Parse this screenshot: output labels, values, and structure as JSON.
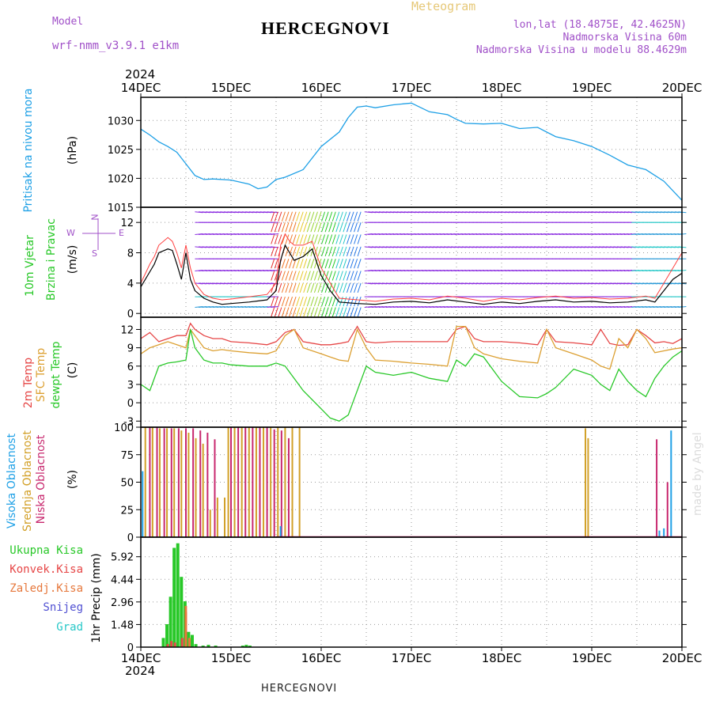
{
  "header": {
    "model_label": "Model",
    "model_name": "wrf-nmm_v3.9.1 e1km",
    "title": "HERCEGNOVI",
    "meteogram": "Meteogram",
    "lonlat": "lon,lat (18.4875E, 42.4625N)",
    "altitude": "Nadmorska Visina 60m",
    "model_altitude": "Nadmorska Visina u modelu 88.4629m"
  },
  "footer": {
    "station": "HERCEGNOVI",
    "credit": "made by Angel"
  },
  "axis": {
    "year_top": "2024",
    "year_bottom": "2024",
    "day_labels": [
      "14DEC",
      "15DEC",
      "16DEC",
      "17DEC",
      "18DEC",
      "19DEC",
      "20DEC"
    ]
  },
  "panel_labels": {
    "pressure": "Pritisak na nivou mora",
    "pressure_unit": "(hPa)",
    "wind_line1": "10m Vjetar",
    "wind_line2": "Brzina i Pravac",
    "wind_unit": "(m/s)",
    "compass_n": "N",
    "compass_e": "E",
    "compass_w": "W",
    "compass_s": "S",
    "temp_2m": "2m Temp",
    "temp_sfc": "SFC Temp",
    "temp_dew": "dewpt Temp",
    "temp_unit": "(C)",
    "cloud_high": "Visoka Oblacnost",
    "cloud_mid": "Srednja Oblacnost",
    "cloud_low": "Niska Oblacnost",
    "cloud_unit": "(%)",
    "precip_total": "Ukupna Kisa",
    "precip_conv": "Konvek.Kisa",
    "precip_frz": "Zaledj.Kisa",
    "precip_snow": "Snijeg",
    "precip_hail": "Grad",
    "precip_unit": "1hr Precip (mm)"
  },
  "colors": {
    "pressure": "#1ea0e6",
    "temp2m": "#e64646",
    "sfc": "#dca032",
    "dew": "#28c828",
    "wind_speed": "#000000",
    "gust": "#ff4040",
    "cloud_high": "#1ea0e6",
    "cloud_mid": "#d2a028",
    "cloud_low": "#c8286e",
    "precip_total": "#28c828",
    "precip_conv": "#e64646",
    "precip_frz": "#e6783c",
    "precip_snow": "#5050d2",
    "precip_hail": "#28c8c8",
    "header_purple": "#a050c8",
    "header_gold": "#e6c878"
  },
  "chart_data": [
    {
      "type": "line",
      "panel": "pressure",
      "ylabel": "(hPa)",
      "ylim": [
        1015,
        1034
      ],
      "yticks": [
        1015,
        1020,
        1025,
        1030
      ],
      "x_days": [
        0,
        0.1,
        0.2,
        0.3,
        0.4,
        0.5,
        0.6,
        0.7,
        0.8,
        1.0,
        1.2,
        1.3,
        1.4,
        1.5,
        1.6,
        1.8,
        2.0,
        2.2,
        2.3,
        2.4,
        2.5,
        2.6,
        2.8,
        3.0,
        3.2,
        3.4,
        3.5,
        3.6,
        3.8,
        4.0,
        4.2,
        4.4,
        4.6,
        4.8,
        5.0,
        5.2,
        5.4,
        5.6,
        5.8,
        6.0
      ],
      "series": [
        {
          "values": [
            1028.5,
            1027.5,
            1026.3,
            1025.5,
            1024.5,
            1022.5,
            1020.5,
            1019.8,
            1019.9,
            1019.7,
            1019.0,
            1018.2,
            1018.5,
            1019.8,
            1020.2,
            1021.5,
            1025.5,
            1028.0,
            1030.5,
            1032.3,
            1032.5,
            1032.2,
            1032.7,
            1033.0,
            1031.5,
            1031.0,
            1030.2,
            1029.5,
            1029.4,
            1029.5,
            1028.6,
            1028.8,
            1027.2,
            1026.5,
            1025.5,
            1024.0,
            1022.3,
            1021.5,
            1019.5,
            1016.2
          ]
        }
      ]
    },
    {
      "type": "line",
      "panel": "wind",
      "ylabel": "(m/s)",
      "ylim": [
        -0.5,
        14
      ],
      "yticks": [
        0,
        4,
        8,
        12
      ],
      "x_days": [
        0,
        0.1,
        0.15,
        0.2,
        0.3,
        0.35,
        0.4,
        0.45,
        0.5,
        0.55,
        0.6,
        0.7,
        0.8,
        0.9,
        1.0,
        1.2,
        1.4,
        1.5,
        1.55,
        1.6,
        1.65,
        1.7,
        1.8,
        1.9,
        2.0,
        2.1,
        2.2,
        2.4,
        2.6,
        2.8,
        3.0,
        3.2,
        3.4,
        3.6,
        3.8,
        4.0,
        4.2,
        4.4,
        4.6,
        4.8,
        5.0,
        5.2,
        5.4,
        5.6,
        5.7,
        5.8,
        5.9,
        6.0
      ],
      "series": [
        {
          "name": "",
          "values": [
            3.5,
            5.5,
            6.5,
            8.0,
            8.5,
            8.3,
            6.5,
            4.5,
            8.0,
            4.5,
            3.0,
            2.0,
            1.5,
            1.2,
            1.3,
            1.5,
            1.8,
            3.0,
            7.0,
            9.0,
            8.0,
            7.0,
            7.5,
            8.5,
            5.0,
            3.0,
            1.5,
            1.3,
            1.2,
            1.5,
            1.6,
            1.4,
            1.8,
            1.5,
            1.2,
            1.5,
            1.3,
            1.6,
            1.8,
            1.5,
            1.6,
            1.4,
            1.5,
            1.8,
            1.5,
            3.0,
            4.5,
            5.3
          ]
        },
        {
          "name": "",
          "values": [
            4.0,
            6.5,
            7.5,
            9.0,
            10.0,
            9.5,
            8.0,
            6.0,
            9.0,
            6.0,
            4.0,
            2.5,
            2.0,
            1.8,
            1.9,
            2.2,
            2.5,
            4.0,
            9.0,
            10.5,
            9.5,
            9.0,
            9.0,
            9.5,
            6.0,
            4.0,
            2.0,
            1.8,
            1.6,
            1.9,
            2.0,
            1.8,
            2.3,
            2.0,
            1.6,
            2.0,
            1.8,
            2.1,
            2.3,
            2.0,
            2.1,
            1.9,
            2.0,
            2.3,
            2.0,
            4.0,
            6.0,
            8.0
          ]
        }
      ]
    },
    {
      "type": "line",
      "panel": "temperature",
      "ylabel": "(C)",
      "ylim": [
        -4,
        14
      ],
      "yticks": [
        -3,
        0,
        3,
        6,
        9,
        12
      ],
      "x_days": [
        0,
        0.1,
        0.2,
        0.3,
        0.4,
        0.5,
        0.55,
        0.6,
        0.7,
        0.8,
        0.9,
        1.0,
        1.2,
        1.4,
        1.5,
        1.6,
        1.7,
        1.8,
        2.0,
        2.1,
        2.2,
        2.3,
        2.4,
        2.5,
        2.6,
        2.8,
        3.0,
        3.2,
        3.4,
        3.5,
        3.6,
        3.7,
        3.8,
        4.0,
        4.2,
        4.4,
        4.5,
        4.6,
        4.8,
        5.0,
        5.1,
        5.2,
        5.3,
        5.4,
        5.5,
        5.6,
        5.7,
        5.8,
        5.9,
        6.0
      ],
      "series": [
        {
          "name": "2m Temp",
          "values": [
            10.5,
            11.5,
            10.0,
            10.5,
            11.0,
            11.0,
            13.0,
            12.0,
            11.0,
            10.5,
            10.5,
            10.0,
            9.8,
            9.5,
            10.0,
            11.5,
            12.0,
            10.0,
            9.5,
            9.5,
            9.7,
            10.0,
            12.5,
            10.0,
            9.8,
            10.0,
            10.0,
            10.0,
            10.0,
            12.0,
            12.5,
            10.5,
            10.0,
            10.0,
            9.8,
            9.5,
            12.0,
            10.0,
            9.8,
            9.5,
            12.0,
            9.7,
            9.4,
            9.5,
            12.0,
            11.0,
            9.8,
            10.0,
            9.7,
            10.5
          ]
        },
        {
          "name": "SFC Temp",
          "values": [
            8.0,
            9.0,
            9.5,
            10.0,
            9.5,
            9.0,
            12.0,
            11.0,
            9.0,
            8.5,
            8.7,
            8.5,
            8.2,
            8.0,
            8.5,
            11.0,
            12.0,
            9.0,
            8.0,
            7.5,
            7.0,
            6.8,
            12.0,
            9.0,
            7.0,
            6.8,
            6.5,
            6.3,
            6.0,
            12.5,
            12.5,
            9.0,
            8.0,
            7.2,
            6.8,
            6.5,
            12.0,
            9.0,
            8.0,
            7.0,
            6.0,
            5.5,
            10.5,
            9.0,
            12.0,
            10.5,
            8.2,
            8.5,
            8.8,
            9.0
          ]
        },
        {
          "name": "dewpt Temp",
          "values": [
            3.0,
            2.0,
            6.0,
            6.5,
            6.7,
            7.0,
            12.0,
            9.0,
            7.0,
            6.5,
            6.5,
            6.2,
            6.0,
            6.0,
            6.5,
            6.0,
            4.0,
            2.0,
            -1.0,
            -2.5,
            -3.0,
            -2.0,
            2.0,
            6.0,
            5.0,
            4.5,
            5.0,
            4.0,
            3.5,
            7.0,
            6.0,
            8.0,
            7.5,
            3.5,
            1.0,
            0.8,
            1.5,
            2.5,
            5.5,
            4.5,
            3.0,
            2.0,
            5.5,
            3.5,
            2.0,
            1.0,
            4.0,
            6.0,
            7.5,
            8.5
          ]
        }
      ]
    },
    {
      "type": "bar",
      "panel": "cloud",
      "ylabel": "(%)",
      "ylim": [
        0,
        100
      ],
      "yticks": [
        0,
        25,
        50,
        75,
        100
      ],
      "series": [
        {
          "name": "Niska Oblacnost",
          "x_days": [
            0.1,
            0.18,
            0.26,
            0.34,
            0.42,
            0.5,
            0.58,
            0.66,
            0.74,
            0.82,
            1.0,
            1.08,
            1.16,
            1.24,
            1.32,
            1.4,
            1.48,
            1.56,
            1.64,
            5.72,
            5.84
          ],
          "values": [
            100,
            100,
            99,
            99,
            99,
            99,
            99,
            97,
            95,
            89,
            100,
            100,
            100,
            100,
            100,
            100,
            98,
            97,
            90,
            89,
            50
          ]
        },
        {
          "name": "Srednja Oblacnost",
          "x_days": [
            0.05,
            0.13,
            0.21,
            0.29,
            0.37,
            0.45,
            0.53,
            0.61,
            0.69,
            0.77,
            0.85,
            0.93,
            0.97,
            1.04,
            1.12,
            1.2,
            1.28,
            1.36,
            1.44,
            1.52,
            1.6,
            1.68,
            1.76,
            4.93,
            4.96
          ],
          "values": [
            100,
            100,
            99,
            99,
            99,
            97,
            95,
            90,
            85,
            25,
            36,
            36,
            100,
            100,
            100,
            100,
            100,
            100,
            100,
            100,
            100,
            100,
            100,
            99,
            90
          ]
        },
        {
          "name": "Visoka Oblacnost",
          "x_days": [
            0.02,
            0.5,
            0.95,
            1.4,
            1.55,
            5.75,
            5.8,
            5.88
          ],
          "values": [
            60,
            0,
            0,
            0,
            10,
            6,
            8,
            97
          ]
        }
      ]
    },
    {
      "type": "bar",
      "panel": "precip",
      "ylabel": "1hr Precip (mm)",
      "ylim": [
        0,
        7.2
      ],
      "yticks": [
        0,
        1.48,
        2.96,
        4.44,
        5.92
      ],
      "series": [
        {
          "name": "Ukupna Kisa",
          "x_days": [
            0.25,
            0.29,
            0.33,
            0.37,
            0.41,
            0.45,
            0.49,
            0.53,
            0.57,
            0.61,
            0.69,
            0.75,
            0.83,
            1.13,
            1.17,
            1.21
          ],
          "values": [
            0.6,
            1.5,
            3.3,
            6.5,
            6.8,
            4.6,
            3.0,
            1.0,
            0.8,
            0.2,
            0.1,
            0.15,
            0.1,
            0.1,
            0.15,
            0.1
          ]
        },
        {
          "name": "Konvek.Kisa",
          "x_days": [
            0.29,
            0.33,
            0.37,
            0.45,
            0.49
          ],
          "values": [
            0.2,
            0.4,
            0.3,
            0.6,
            2.3
          ]
        },
        {
          "name": "Zaledj.Kisa",
          "x_days": [
            0.49,
            0.53
          ],
          "values": [
            2.7,
            0.6
          ]
        },
        {
          "name": "Snijeg",
          "x_days": [],
          "values": []
        },
        {
          "name": "Grad",
          "x_days": [],
          "values": []
        }
      ]
    }
  ]
}
